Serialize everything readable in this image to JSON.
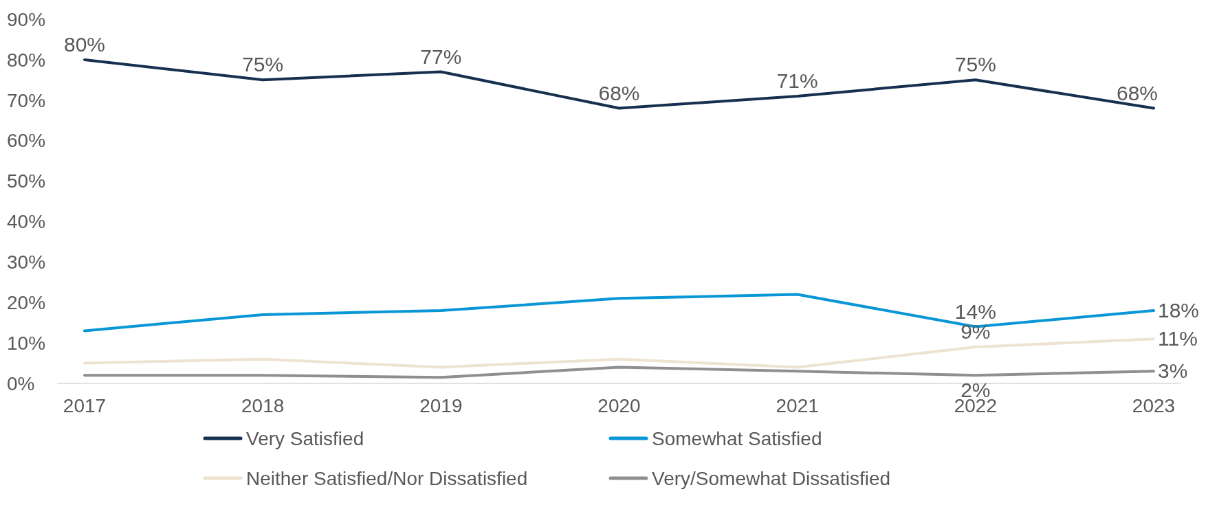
{
  "chart_data": {
    "type": "line",
    "categories": [
      "2017",
      "2018",
      "2019",
      "2020",
      "2021",
      "2022",
      "2023"
    ],
    "ylim": [
      0,
      90
    ],
    "yticks": [
      {
        "value": 0,
        "label": "0%"
      },
      {
        "value": 10,
        "label": "10%"
      },
      {
        "value": 20,
        "label": "20%"
      },
      {
        "value": 30,
        "label": "30%"
      },
      {
        "value": 40,
        "label": "40%"
      },
      {
        "value": 50,
        "label": "50%"
      },
      {
        "value": 60,
        "label": "60%"
      },
      {
        "value": 70,
        "label": "70%"
      },
      {
        "value": 80,
        "label": "80%"
      },
      {
        "value": 90,
        "label": "90%"
      }
    ],
    "grid": false,
    "legend": "bottom",
    "marker": "none",
    "line_style": "solid",
    "series": [
      {
        "name": "Very Satisfied",
        "color": "#17304f",
        "values": [
          80,
          75,
          77,
          68,
          71,
          75,
          68
        ],
        "value_labels": [
          "80%",
          "75%",
          "77%",
          "68%",
          "71%",
          "75%",
          "68%"
        ]
      },
      {
        "name": "Somewhat Satisfied",
        "color": "#0996d6",
        "values": [
          13,
          17,
          18,
          21,
          22,
          14,
          18
        ],
        "value_labels": [
          null,
          null,
          null,
          null,
          null,
          "14%",
          "18%"
        ]
      },
      {
        "name": "Neither Satisfied/Nor Dissatisfied",
        "color": "#ede3d0",
        "values": [
          5,
          6,
          4,
          6,
          4,
          9,
          11
        ],
        "value_labels": [
          null,
          null,
          null,
          null,
          null,
          "9%",
          "11%"
        ]
      },
      {
        "name": "Very/Somewhat Dissatisfied",
        "color": "#8f8f93",
        "values": [
          2,
          2,
          1.5,
          4,
          3,
          2,
          3
        ],
        "value_labels": [
          null,
          null,
          null,
          null,
          null,
          "2%",
          "3%"
        ]
      }
    ]
  }
}
